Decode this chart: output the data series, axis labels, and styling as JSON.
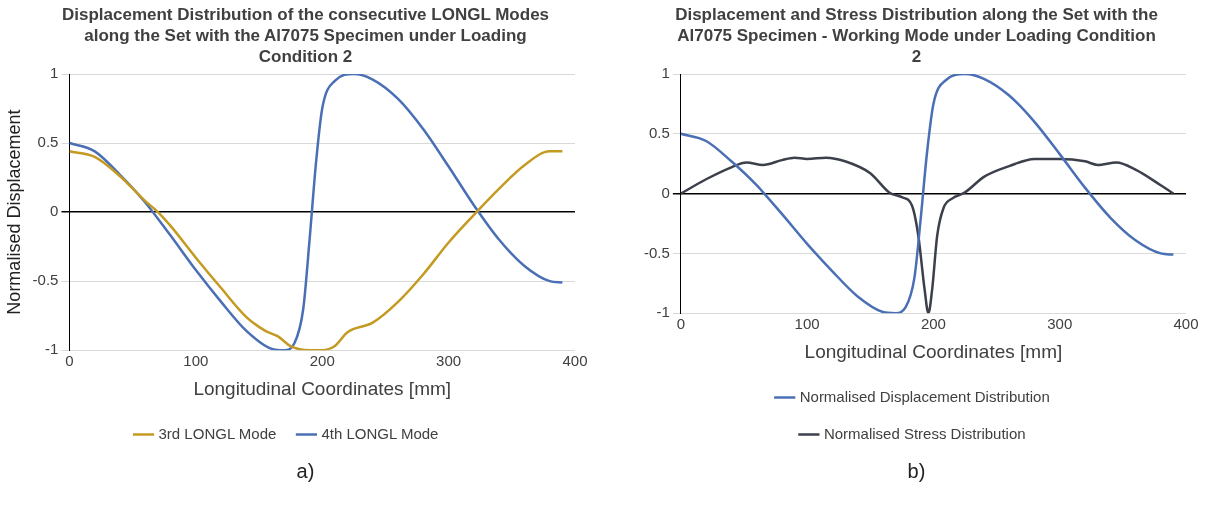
{
  "chart_data": [
    {
      "type": "line",
      "title": "Displacement Distribution of the consecutive LONGL Modes along the Set with the Al7075 Specimen under Loading Condition 2",
      "xlabel": "Longitudinal Coordinates [mm]",
      "ylabel": "Normalised Displacement",
      "xlim": [
        0,
        400
      ],
      "xticks": [
        0,
        100,
        200,
        300,
        400
      ],
      "ylim": [
        -1,
        1
      ],
      "yticks": [
        -1,
        -0.5,
        0,
        0.5,
        1
      ],
      "grid": "y",
      "legend": "bottom",
      "marker": "none",
      "line_style": "solid",
      "annotations": [
        "a)"
      ],
      "series": [
        {
          "name": "3rd LONGL Mode",
          "color": "#c49a22",
          "x": [
            0,
            20,
            40,
            60,
            70,
            80,
            100,
            120,
            140,
            155,
            165,
            175,
            190,
            200,
            210,
            220,
            240,
            260,
            280,
            300,
            320,
            340,
            360,
            380,
            390
          ],
          "values": [
            0.44,
            0.4,
            0.26,
            0.08,
            0,
            -0.1,
            -0.33,
            -0.55,
            -0.76,
            -0.86,
            -0.9,
            -0.97,
            -1,
            -1,
            -0.97,
            -0.87,
            -0.8,
            -0.65,
            -0.45,
            -0.22,
            -0.02,
            0.17,
            0.34,
            0.44,
            0.44
          ]
        },
        {
          "name": "4th LONGL Mode",
          "color": "#4a6fb5",
          "x": [
            0,
            20,
            40,
            60,
            80,
            100,
            120,
            140,
            160,
            170,
            178,
            185,
            190,
            195,
            200,
            210,
            225,
            240,
            260,
            280,
            300,
            320,
            340,
            360,
            380,
            390
          ],
          "values": [
            0.5,
            0.44,
            0.27,
            0.07,
            -0.17,
            -0.42,
            -0.65,
            -0.86,
            -0.99,
            -1,
            -0.95,
            -0.7,
            -0.2,
            0.35,
            0.75,
            0.95,
            1,
            0.96,
            0.82,
            0.6,
            0.33,
            0.05,
            -0.2,
            -0.39,
            -0.5,
            -0.51
          ]
        }
      ]
    },
    {
      "type": "line",
      "title": "Displacement and Stress Distribution along the Set with the Al7075 Specimen - Working Mode under Loading Condition 2",
      "xlabel": "Longitudinal Coordinates [mm]",
      "xlim": [
        0,
        400
      ],
      "xticks": [
        0,
        100,
        200,
        300,
        400
      ],
      "ylim": [
        -1,
        1
      ],
      "yticks": [
        -1,
        -0.5,
        0,
        0.5,
        1
      ],
      "grid": "y",
      "legend": "bottom",
      "marker": "none",
      "line_style": "solid",
      "annotations": [
        "b)"
      ],
      "series": [
        {
          "name": "Normalised Displacement Distribution",
          "color": "#4a6fb5",
          "x": [
            0,
            20,
            40,
            60,
            80,
            100,
            120,
            140,
            160,
            170,
            178,
            185,
            190,
            195,
            200,
            210,
            225,
            240,
            260,
            280,
            300,
            320,
            340,
            360,
            380,
            390
          ],
          "values": [
            0.5,
            0.44,
            0.27,
            0.07,
            -0.17,
            -0.42,
            -0.65,
            -0.86,
            -0.99,
            -1,
            -0.95,
            -0.7,
            -0.2,
            0.35,
            0.75,
            0.95,
            1,
            0.96,
            0.82,
            0.6,
            0.33,
            0.05,
            -0.2,
            -0.39,
            -0.5,
            -0.51
          ]
        },
        {
          "name": "Normalised Stress Distribution",
          "color": "#3b404b",
          "x": [
            0,
            20,
            40,
            52,
            65,
            80,
            90,
            100,
            115,
            130,
            150,
            165,
            175,
            183,
            188,
            193,
            196,
            199,
            203,
            208,
            215,
            225,
            240,
            260,
            280,
            300,
            320,
            330,
            345,
            360,
            380,
            390
          ],
          "values": [
            0,
            0.12,
            0.22,
            0.26,
            0.24,
            0.28,
            0.3,
            0.29,
            0.3,
            0.27,
            0.17,
            0.01,
            -0.03,
            -0.1,
            -0.35,
            -0.8,
            -1,
            -0.8,
            -0.35,
            -0.12,
            -0.04,
            0.01,
            0.14,
            0.23,
            0.29,
            0.29,
            0.27,
            0.24,
            0.26,
            0.2,
            0.07,
            0
          ]
        }
      ]
    }
  ]
}
